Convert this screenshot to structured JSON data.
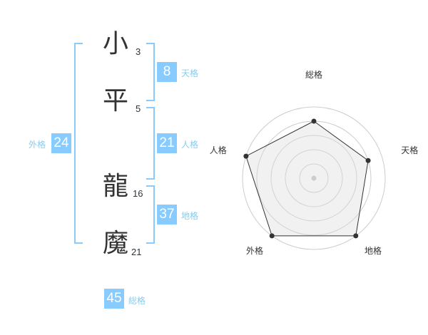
{
  "name": [
    {
      "char": "小",
      "strokes": "3"
    },
    {
      "char": "平",
      "strokes": "5"
    },
    {
      "char": "龍",
      "strokes": "16"
    },
    {
      "char": "魔",
      "strokes": "21"
    }
  ],
  "fortunes": {
    "tenkaku": {
      "label": "天格",
      "value": "8"
    },
    "jinkaku": {
      "label": "人格",
      "value": "21"
    },
    "chikaku": {
      "label": "地格",
      "value": "37"
    },
    "gaikaku": {
      "label": "外格",
      "value": "24"
    },
    "soukaku": {
      "label": "総格",
      "value": "45"
    }
  },
  "colors": {
    "accent": "#88ccff",
    "label": "#88ccee"
  },
  "chart_data": {
    "type": "radar",
    "axes": [
      "総格",
      "天格",
      "地格",
      "外格",
      "人格"
    ],
    "values": [
      4,
      4,
      5,
      5,
      5
    ],
    "range": [
      0,
      5
    ],
    "grid": true
  }
}
